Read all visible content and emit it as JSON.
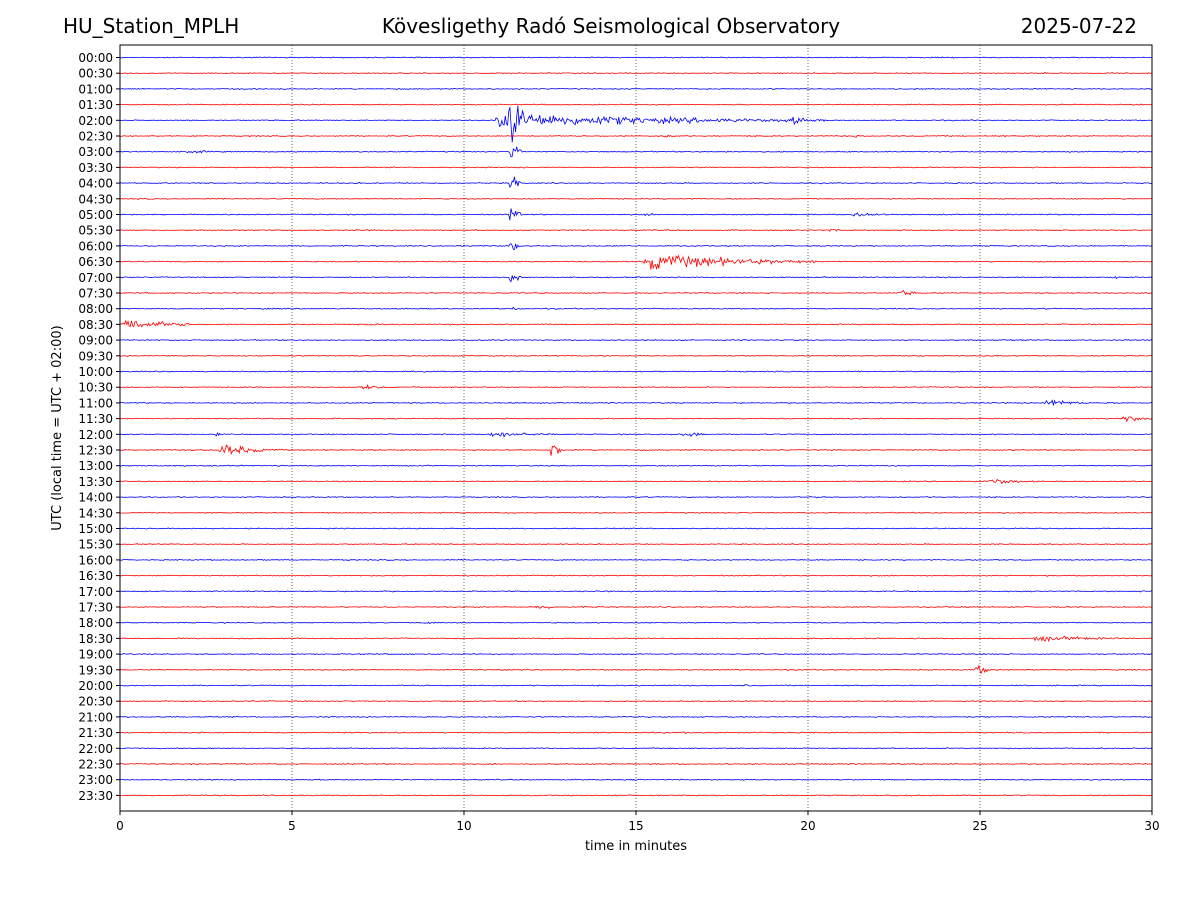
{
  "header": {
    "station": "HU_Station_MPLH",
    "observatory": "Kövesligethy Radó Seismological Observatory",
    "date": "2025-07-22"
  },
  "chart_data": {
    "type": "line",
    "title": "Kövesligethy Radó Seismological Observatory",
    "xlabel": "time in minutes",
    "ylabel": "UTC (local time = UTC + 02:00)",
    "xlim": [
      0,
      30
    ],
    "xticks": [
      "0",
      "5",
      "10",
      "15",
      "20",
      "25",
      "30"
    ],
    "grid": "vertical dotted at x ticks",
    "colors": {
      "even_rows": "#0000ff",
      "odd_rows": "#ff0000"
    },
    "rows": [
      "00:00",
      "00:30",
      "01:00",
      "01:30",
      "02:00",
      "02:30",
      "03:00",
      "03:30",
      "04:00",
      "04:30",
      "05:00",
      "05:30",
      "06:00",
      "06:30",
      "07:00",
      "07:30",
      "08:00",
      "08:30",
      "09:00",
      "09:30",
      "10:00",
      "10:30",
      "11:00",
      "11:30",
      "12:00",
      "12:30",
      "13:00",
      "13:30",
      "14:00",
      "14:30",
      "15:00",
      "15:30",
      "16:00",
      "16:30",
      "17:00",
      "17:30",
      "18:00",
      "18:30",
      "19:00",
      "19:30",
      "20:00",
      "20:30",
      "21:00",
      "21:30",
      "22:00",
      "22:30",
      "23:00",
      "23:30"
    ],
    "events": [
      {
        "row": 4,
        "start": 11.3,
        "end": 11.9,
        "amp": 10
      },
      {
        "row": 4,
        "start": 10.8,
        "end": 20.5,
        "amp": 2.2
      },
      {
        "row": 4,
        "start": 19.3,
        "end": 20.5,
        "amp": 1.2
      },
      {
        "row": 5,
        "start": 15.8,
        "end": 16.3,
        "amp": 0.8
      },
      {
        "row": 5,
        "start": 21.3,
        "end": 21.8,
        "amp": 0.5
      },
      {
        "row": 6,
        "start": 1.8,
        "end": 3.0,
        "amp": 0.6
      },
      {
        "row": 6,
        "start": 11.3,
        "end": 11.7,
        "amp": 3.5
      },
      {
        "row": 8,
        "start": 11.3,
        "end": 11.7,
        "amp": 3.2
      },
      {
        "row": 10,
        "start": 11.3,
        "end": 11.7,
        "amp": 2.5
      },
      {
        "row": 10,
        "start": 15.2,
        "end": 15.8,
        "amp": 0.4
      },
      {
        "row": 10,
        "start": 21.2,
        "end": 22.5,
        "amp": 0.9
      },
      {
        "row": 11,
        "start": 20.5,
        "end": 21.3,
        "amp": 0.4
      },
      {
        "row": 12,
        "start": 11.3,
        "end": 11.7,
        "amp": 2.0
      },
      {
        "row": 13,
        "start": 15.2,
        "end": 20.5,
        "amp": 2.4
      },
      {
        "row": 14,
        "start": 11.3,
        "end": 11.7,
        "amp": 2.0
      },
      {
        "row": 14,
        "start": 28.8,
        "end": 29.5,
        "amp": 0.4
      },
      {
        "row": 15,
        "start": 22.6,
        "end": 23.3,
        "amp": 1.0
      },
      {
        "row": 16,
        "start": 11.4,
        "end": 11.6,
        "amp": 1.5
      },
      {
        "row": 17,
        "start": 0.0,
        "end": 2.2,
        "amp": 1.9
      },
      {
        "row": 17,
        "start": 7.0,
        "end": 9.0,
        "amp": 0.3
      },
      {
        "row": 21,
        "start": 7.0,
        "end": 7.8,
        "amp": 0.8
      },
      {
        "row": 22,
        "start": 26.8,
        "end": 28.5,
        "amp": 1.0
      },
      {
        "row": 23,
        "start": 29.1,
        "end": 30.0,
        "amp": 1.0
      },
      {
        "row": 24,
        "start": 2.7,
        "end": 3.2,
        "amp": 0.5
      },
      {
        "row": 24,
        "start": 10.7,
        "end": 13.0,
        "amp": 0.9
      },
      {
        "row": 24,
        "start": 16.3,
        "end": 17.3,
        "amp": 0.9
      },
      {
        "row": 25,
        "start": 2.8,
        "end": 4.8,
        "amp": 1.6
      },
      {
        "row": 25,
        "start": 12.5,
        "end": 12.9,
        "amp": 3.5
      },
      {
        "row": 27,
        "start": 25.2,
        "end": 26.8,
        "amp": 0.9
      },
      {
        "row": 28,
        "start": 20.0,
        "end": 20.8,
        "amp": 0.3
      },
      {
        "row": 34,
        "start": 7.5,
        "end": 10.0,
        "amp": 0.2
      },
      {
        "row": 35,
        "start": 12.0,
        "end": 14.0,
        "amp": 0.5
      },
      {
        "row": 36,
        "start": 8.8,
        "end": 10.2,
        "amp": 0.3
      },
      {
        "row": 37,
        "start": 26.5,
        "end": 30.0,
        "amp": 0.8
      },
      {
        "row": 38,
        "start": 0.0,
        "end": 0.4,
        "amp": 0.3
      },
      {
        "row": 39,
        "start": 24.8,
        "end": 25.5,
        "amp": 1.3
      },
      {
        "row": 40,
        "start": 18.0,
        "end": 19.0,
        "amp": 0.3
      },
      {
        "row": 43,
        "start": 16.3,
        "end": 17.0,
        "amp": 0.3
      },
      {
        "row": 47,
        "start": 14.9,
        "end": 16.5,
        "amp": 0.2
      }
    ]
  }
}
